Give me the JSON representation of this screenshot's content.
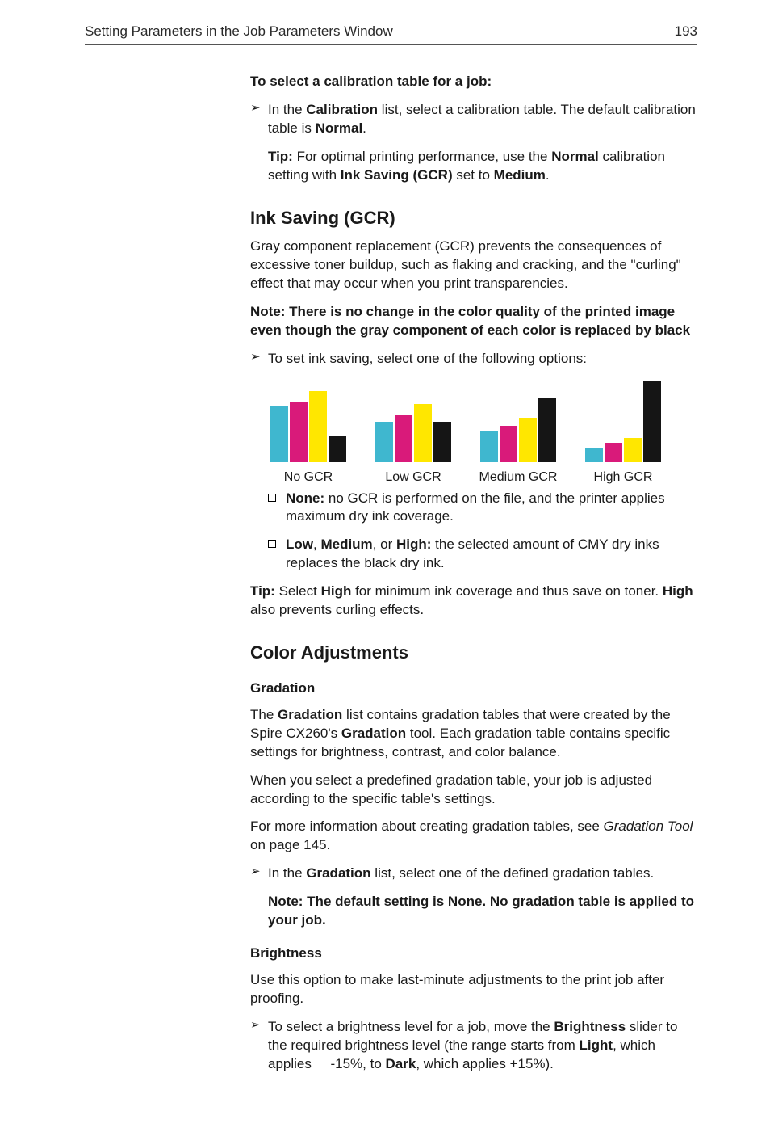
{
  "header": {
    "running_title": "Setting Parameters in the Job Parameters Window",
    "page_number": "193"
  },
  "calibration": {
    "title": "To select a calibration table for a job:",
    "step_pre": "In the ",
    "step_bold1": "Calibration",
    "step_mid": " list, select a calibration table. The default calibration table is ",
    "step_bold2": "Normal",
    "step_post": ".",
    "tip_label": "Tip:",
    "tip_text_pre": "  For optimal printing performance, use the ",
    "tip_bold1": "Normal",
    "tip_mid": " calibration setting with ",
    "tip_bold2": "Ink Saving (GCR)",
    "tip_mid2": " set to ",
    "tip_bold3": "Medium",
    "tip_post": "."
  },
  "ink": {
    "heading": "Ink Saving (GCR)",
    "para1": "Gray component replacement (GCR) prevents the consequences of excessive toner buildup, such as flaking and cracking, and the \"curling\" effect that may occur when you print transparencies.",
    "note_label": "Note:",
    "note_text": "  There is no change in the color quality of the printed image even though the gray component of each color is replaced by black",
    "step": "To set ink saving, select one of the following options:",
    "colors": {
      "c": "#3fb7cf",
      "m": "#d91a7a",
      "y": "#ffe700",
      "k": "#151515"
    },
    "charts": [
      {
        "label": "No GCR",
        "bars": [
          70,
          75,
          88,
          32
        ]
      },
      {
        "label": "Low GCR",
        "bars": [
          50,
          58,
          72,
          50
        ]
      },
      {
        "label": "Medium GCR",
        "bars": [
          38,
          45,
          55,
          80
        ]
      },
      {
        "label": "High GCR",
        "bars": [
          18,
          24,
          30,
          100
        ]
      }
    ],
    "opt_none_label": "None:",
    "opt_none_text": " no GCR is performed on the file, and the printer applies maximum dry ink coverage.",
    "opt_lmh_b1": "Low",
    "opt_lmh_sep1": ", ",
    "opt_lmh_b2": "Medium",
    "opt_lmh_sep2": ", or ",
    "opt_lmh_b3": "High:",
    "opt_lmh_text": " the selected amount of CMY dry inks replaces the black dry ink.",
    "tip2_label": "Tip:",
    "tip2_pre": "  Select ",
    "tip2_b1": "High",
    "tip2_mid": " for minimum ink coverage and thus save on toner. ",
    "tip2_b2": "High",
    "tip2_post": " also prevents curling effects."
  },
  "color": {
    "heading": "Color Adjustments",
    "grad_heading": "Gradation",
    "grad_p1_pre": "The ",
    "grad_p1_b1": "Gradation",
    "grad_p1_mid1": " list contains gradation tables that were created by the Spire CX260's ",
    "grad_p1_b2": "Gradation",
    "grad_p1_mid2": " tool. Each gradation table contains specific settings for brightness, contrast, and color balance.",
    "grad_p2": "When you select a predefined gradation table, your job is adjusted according to the specific table's settings.",
    "grad_p3_pre": "For more information about creating gradation tables, see ",
    "grad_p3_i": "Gradation Tool",
    "grad_p3_post": " on page 145.",
    "grad_step_pre": "In the ",
    "grad_step_b": "Gradation",
    "grad_step_post": " list, select one of the defined gradation tables.",
    "grad_note_label": "Note:",
    "grad_note_pre": "  The default setting is ",
    "grad_note_b": "None",
    "grad_note_post": ". No gradation table is applied to your job.",
    "bright_heading": "Brightness",
    "bright_p1": "Use this option to make last-minute adjustments to the print job after proofing.",
    "bright_step_pre": "To select a brightness level for a job, move the ",
    "bright_step_b1": "Brightness",
    "bright_step_mid1": " slider to the required brightness level (the range starts from ",
    "bright_step_b2": "Light",
    "bright_step_mid2": ", which applies     -15%, to ",
    "bright_step_b3": "Dark",
    "bright_step_post": ", which applies +15%)."
  }
}
